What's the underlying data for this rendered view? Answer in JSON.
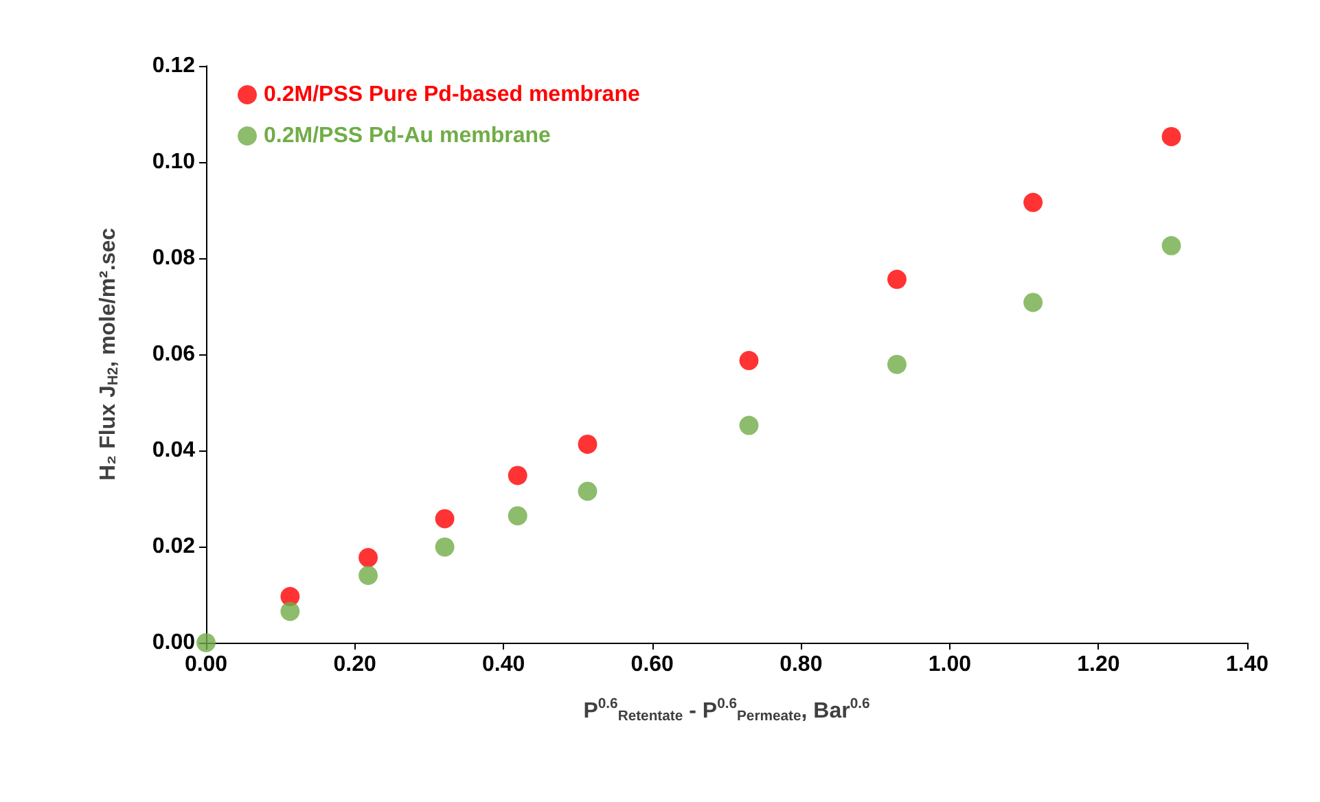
{
  "chart_data": {
    "type": "scatter",
    "xlabel": "P$^{0.6}$$_{Retentate}$ - P$^{0.6}$$_{Permeate}$, Bar$^{0.6}$",
    "ylabel": "H₂ Flux J$_{H2}$, mole/m².sec",
    "x": [
      0,
      0.113,
      0.218,
      0.321,
      0.419,
      0.513,
      0.73,
      0.929,
      1.112,
      1.298
    ],
    "series": [
      {
        "name": "0.2M/PSS Pure Pd-based membrane",
        "color": "#ff0000",
        "values": [
          null,
          0.0096,
          0.0177,
          0.0258,
          0.0348,
          0.0413,
          0.0587,
          0.0756,
          0.0916,
          0.1053
        ]
      },
      {
        "name": "0.2M/PSS Pd-Au membrane",
        "color": "#70ad47",
        "values": [
          0,
          0.0065,
          0.014,
          0.0199,
          0.0264,
          0.0315,
          0.0452,
          0.0579,
          0.0708,
          0.0826
        ]
      }
    ],
    "xlim": [
      0,
      1.4
    ],
    "ylim": [
      0,
      0.12
    ],
    "xticks": [
      {
        "value": 0,
        "label": "0.00"
      },
      {
        "value": 0.2,
        "label": "0.20"
      },
      {
        "value": 0.4,
        "label": "0.40"
      },
      {
        "value": 0.6,
        "label": "0.60"
      },
      {
        "value": 0.8,
        "label": "0.80"
      },
      {
        "value": 1,
        "label": "1.00"
      },
      {
        "value": 1.2,
        "label": "1.20"
      },
      {
        "value": 1.4,
        "label": "1.40"
      }
    ],
    "yticks": [
      {
        "value": 0,
        "label": "0.00"
      },
      {
        "value": 0.02,
        "label": "0.02"
      },
      {
        "value": 0.04,
        "label": "0.04"
      },
      {
        "value": 0.06,
        "label": "0.06"
      },
      {
        "value": 0.08,
        "label": "0.08"
      },
      {
        "value": 0.1,
        "label": "0.10"
      },
      {
        "value": 0.12,
        "label": "0.12"
      }
    ],
    "grid": false,
    "legend": "top left",
    "marker": "circle"
  }
}
